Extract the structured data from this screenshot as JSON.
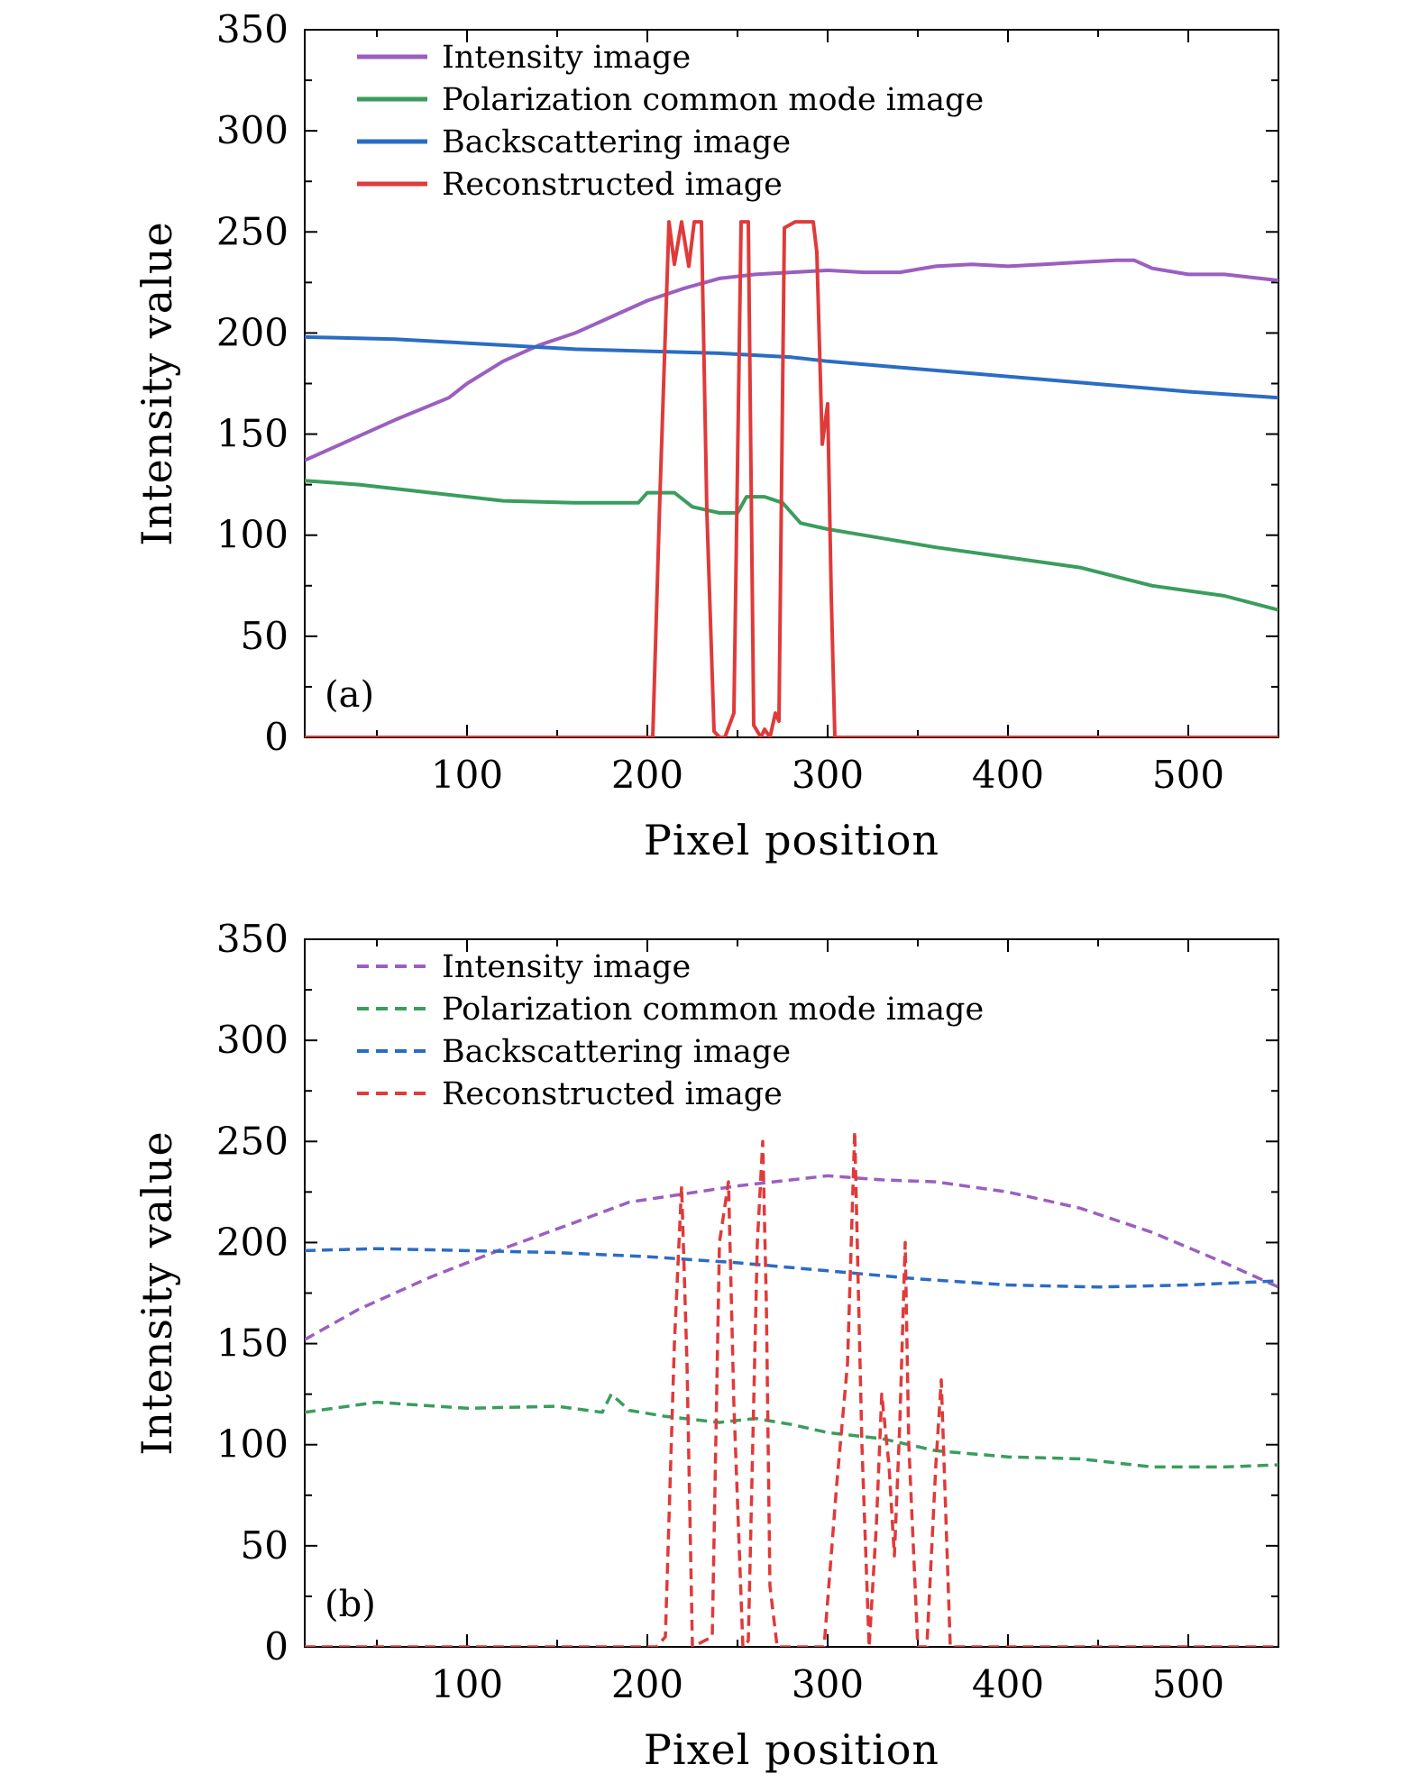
{
  "chart_data": [
    {
      "type": "line",
      "panel_label": "(a)",
      "line_style": "solid",
      "xlabel": "Pixel position",
      "ylabel": "Intensity value",
      "xlim": [
        10,
        550
      ],
      "ylim": [
        0,
        350
      ],
      "xticks": [
        100,
        200,
        300,
        400,
        500
      ],
      "yticks": [
        0,
        50,
        100,
        150,
        200,
        250,
        300,
        350
      ],
      "legend_position": "top-left",
      "series": [
        {
          "name": "Intensity image",
          "color": "#9b5fc0",
          "x": [
            10,
            30,
            60,
            90,
            100,
            120,
            140,
            160,
            180,
            200,
            220,
            240,
            260,
            280,
            300,
            320,
            340,
            360,
            380,
            400,
            420,
            440,
            460,
            470,
            480,
            500,
            520,
            540,
            550
          ],
          "y": [
            137,
            145,
            157,
            168,
            175,
            186,
            194,
            200,
            208,
            216,
            222,
            227,
            229,
            230,
            231,
            230,
            230,
            233,
            234,
            233,
            234,
            235,
            236,
            236,
            232,
            229,
            229,
            227,
            226
          ]
        },
        {
          "name": "Polarization common mode image",
          "color": "#3a9d5d",
          "x": [
            10,
            40,
            80,
            120,
            160,
            195,
            200,
            210,
            215,
            225,
            240,
            250,
            255,
            265,
            275,
            285,
            300,
            320,
            360,
            400,
            440,
            480,
            520,
            550
          ],
          "y": [
            127,
            125,
            121,
            117,
            116,
            116,
            121,
            121,
            121,
            114,
            111,
            111,
            119,
            119,
            116,
            106,
            103,
            100,
            94,
            89,
            84,
            75,
            70,
            63
          ]
        },
        {
          "name": "Backscattering image",
          "color": "#2b6cc4",
          "x": [
            10,
            60,
            120,
            160,
            200,
            240,
            280,
            300,
            340,
            380,
            420,
            460,
            500,
            550
          ],
          "y": [
            198,
            197,
            194,
            192,
            191,
            190,
            188,
            186,
            183,
            180,
            177,
            174,
            171,
            168
          ]
        },
        {
          "name": "Reconstructed image",
          "color": "#e03a3a",
          "x": [
            10,
            203,
            207,
            212,
            215,
            219,
            223,
            226,
            230,
            233,
            237,
            240,
            243,
            248,
            252,
            256,
            259,
            263,
            265,
            268,
            271,
            273,
            276,
            282,
            288,
            292,
            294,
            297,
            300,
            302,
            304,
            306,
            550
          ],
          "y": [
            0,
            0,
            120,
            255,
            234,
            255,
            233,
            255,
            255,
            112,
            3,
            0,
            0,
            12,
            255,
            255,
            6,
            0,
            4,
            0,
            12,
            8,
            252,
            255,
            255,
            255,
            240,
            145,
            165,
            70,
            0,
            0,
            0
          ]
        }
      ]
    },
    {
      "type": "line",
      "panel_label": "(b)",
      "line_style": "dashed",
      "xlabel": "Pixel position",
      "ylabel": "Intensity value",
      "xlim": [
        10,
        550
      ],
      "ylim": [
        0,
        350
      ],
      "xticks": [
        100,
        200,
        300,
        400,
        500
      ],
      "yticks": [
        0,
        50,
        100,
        150,
        200,
        250,
        300,
        350
      ],
      "legend_position": "top-left",
      "series": [
        {
          "name": "Intensity image",
          "color": "#9b5fc0",
          "x": [
            10,
            40,
            80,
            120,
            160,
            190,
            220,
            250,
            280,
            300,
            330,
            360,
            400,
            440,
            480,
            520,
            550
          ],
          "y": [
            152,
            167,
            183,
            197,
            210,
            220,
            224,
            228,
            231,
            233,
            231,
            230,
            225,
            217,
            205,
            190,
            178
          ]
        },
        {
          "name": "Polarization common mode image",
          "color": "#3a9d5d",
          "x": [
            10,
            50,
            100,
            150,
            175,
            180,
            190,
            210,
            240,
            260,
            280,
            300,
            330,
            360,
            400,
            440,
            480,
            520,
            550
          ],
          "y": [
            116,
            121,
            118,
            119,
            116,
            125,
            117,
            114,
            111,
            113,
            110,
            106,
            103,
            97,
            94,
            93,
            89,
            89,
            90
          ]
        },
        {
          "name": "Backscattering image",
          "color": "#2b6cc4",
          "x": [
            10,
            50,
            100,
            150,
            200,
            250,
            300,
            350,
            400,
            450,
            500,
            550
          ],
          "y": [
            196,
            197,
            196,
            195,
            193,
            190,
            186,
            182,
            179,
            178,
            179,
            181
          ]
        },
        {
          "name": "Reconstructed image",
          "color": "#e03a3a",
          "x": [
            10,
            205,
            210,
            215,
            219,
            222,
            225,
            236,
            240,
            245,
            248,
            253,
            256,
            261,
            264,
            266,
            268,
            272,
            298,
            305,
            311,
            315,
            319,
            323,
            327,
            330,
            334,
            337,
            340,
            343,
            345,
            350,
            355,
            360,
            363,
            368,
            550
          ],
          "y": [
            0,
            0,
            5,
            150,
            228,
            140,
            0,
            5,
            200,
            230,
            120,
            0,
            3,
            200,
            250,
            170,
            30,
            0,
            0,
            80,
            140,
            255,
            100,
            0,
            60,
            125,
            90,
            45,
            110,
            200,
            100,
            0,
            0,
            90,
            132,
            0,
            0
          ]
        }
      ]
    }
  ]
}
